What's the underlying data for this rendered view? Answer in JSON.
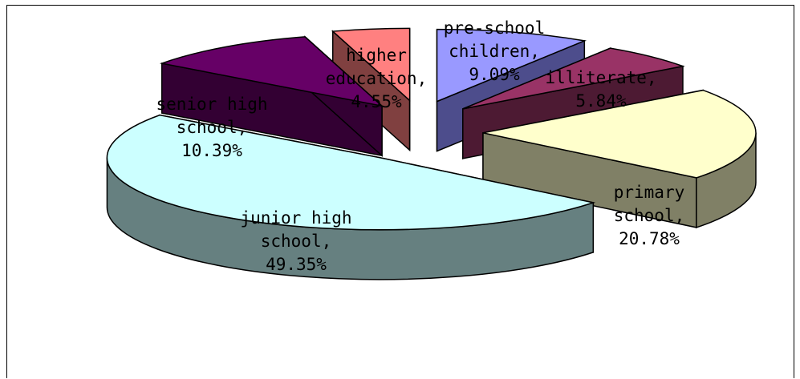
{
  "chart_data": {
    "type": "pie",
    "title": "",
    "slices": [
      {
        "label_lines": [
          "pre-school",
          "children,",
          "9.09%"
        ],
        "value": 9.09,
        "top_color": "#9999ff",
        "side_color": "#4d4d8c"
      },
      {
        "label_lines": [
          "illiterate,",
          "5.84%"
        ],
        "value": 5.84,
        "top_color": "#993366",
        "side_color": "#4d1a33"
      },
      {
        "label_lines": [
          "primary",
          "school,",
          "20.78%"
        ],
        "value": 20.78,
        "top_color": "#ffffcc",
        "side_color": "#808066"
      },
      {
        "label_lines": [
          "junior high",
          "school,",
          "49.35%"
        ],
        "value": 49.35,
        "top_color": "#ccffff",
        "side_color": "#668080"
      },
      {
        "label_lines": [
          "senior high",
          "school,",
          "10.39%"
        ],
        "value": 10.39,
        "top_color": "#660066",
        "side_color": "#330033"
      },
      {
        "label_lines": [
          "higher",
          "education,",
          "4.55%"
        ],
        "value": 4.55,
        "top_color": "#ff8080",
        "side_color": "#804040"
      }
    ],
    "legend": "none",
    "exploded": true,
    "three_d": true
  }
}
